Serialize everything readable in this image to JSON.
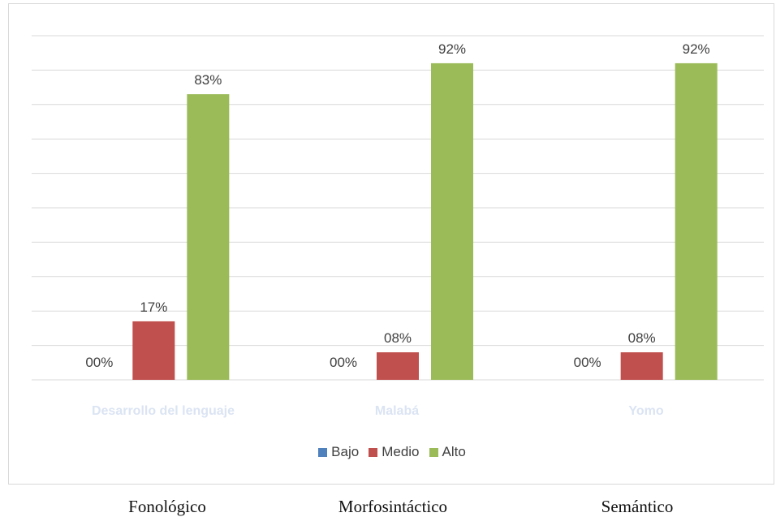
{
  "chart_data": {
    "type": "bar",
    "categories": [
      "Fonológico",
      "Morfosintáctico",
      "Semántico"
    ],
    "series": [
      {
        "name": "Bajo",
        "values": [
          0,
          0,
          0
        ],
        "labels": [
          "00%",
          "00%",
          "00%"
        ],
        "color": "#4f81bd"
      },
      {
        "name": "Medio",
        "values": [
          17,
          8,
          8
        ],
        "labels": [
          "17%",
          "08%",
          "08%"
        ],
        "color": "#c0504d"
      },
      {
        "name": "Alto",
        "values": [
          83,
          92,
          92
        ],
        "labels": [
          "83%",
          "92%",
          "92%"
        ],
        "color": "#9bbb59"
      }
    ],
    "ylim": [
      0,
      100
    ],
    "grid": true,
    "legend_position": "bottom",
    "faded_labels": [
      "Desarrollo del lenguaje",
      "Malabá",
      "Yomo"
    ]
  }
}
